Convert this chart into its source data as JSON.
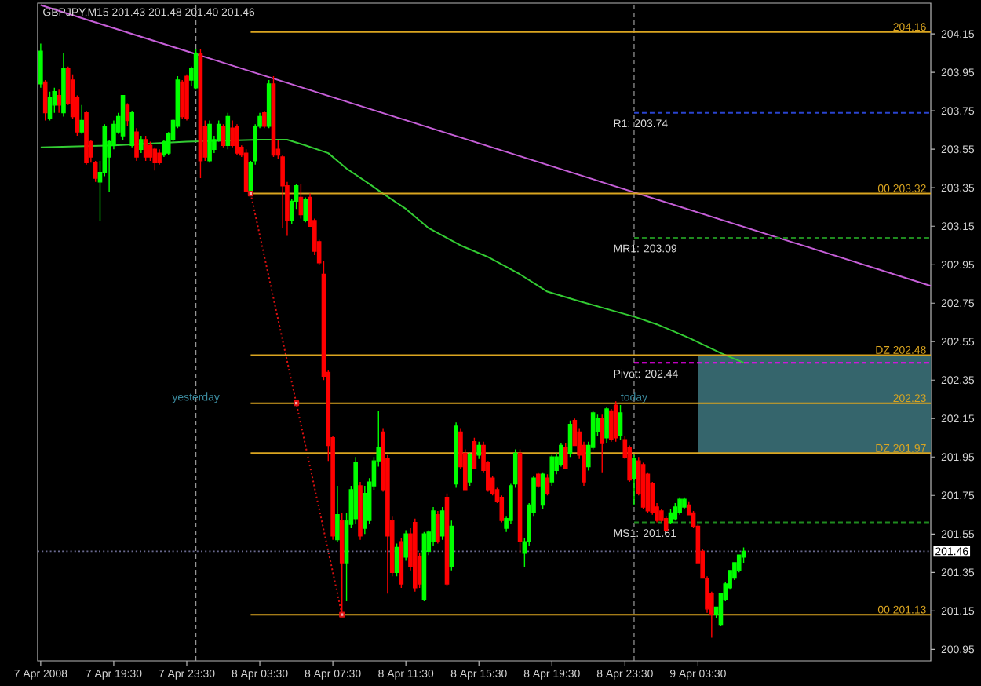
{
  "chart_data": {
    "type": "candlestick",
    "title": "GBPJPY,M15 201.43 201.48 201.40 201.46",
    "xlim": [
      "2008-04-07T15:20",
      "2008-04-09T16:15"
    ],
    "ylim": [
      200.89,
      204.31
    ],
    "xticks": [
      {
        "value": "2008-04-07T15:30",
        "label": "7 Apr 2008"
      },
      {
        "value": "2008-04-07T19:30",
        "label": "7 Apr 19:30"
      },
      {
        "value": "2008-04-07T23:30",
        "label": "7 Apr 23:30"
      },
      {
        "value": "2008-04-08T03:30",
        "label": "8 Apr 03:30"
      },
      {
        "value": "2008-04-08T07:30",
        "label": "8 Apr 07:30"
      },
      {
        "value": "2008-04-08T11:30",
        "label": "8 Apr 11:30"
      },
      {
        "value": "2008-04-08T15:30",
        "label": "8 Apr 15:30"
      },
      {
        "value": "2008-04-08T19:30",
        "label": "8 Apr 19:30"
      },
      {
        "value": "2008-04-08T23:30",
        "label": "8 Apr 23:30"
      },
      {
        "value": "2008-04-09T03:30",
        "label": "9 Apr 03:30"
      }
    ],
    "yticks": [
      200.95,
      201.15,
      201.35,
      201.55,
      201.75,
      201.95,
      202.15,
      202.35,
      202.55,
      202.75,
      202.95,
      203.15,
      203.35,
      203.55,
      203.75,
      203.95,
      204.15
    ],
    "x": [
      "2008-04-07T15:30",
      "2008-04-07T15:45",
      "2008-04-07T16:00",
      "2008-04-07T16:15",
      "2008-04-07T16:30",
      "2008-04-07T16:45",
      "2008-04-07T17:00",
      "2008-04-07T17:15",
      "2008-04-07T17:30",
      "2008-04-07T17:45",
      "2008-04-07T18:00",
      "2008-04-07T18:15",
      "2008-04-07T18:30",
      "2008-04-07T18:45",
      "2008-04-07T19:00",
      "2008-04-07T19:15",
      "2008-04-07T19:30",
      "2008-04-07T19:45",
      "2008-04-07T20:00",
      "2008-04-07T20:15",
      "2008-04-07T20:30",
      "2008-04-07T20:45",
      "2008-04-07T21:00",
      "2008-04-07T21:15",
      "2008-04-07T21:30",
      "2008-04-07T21:45",
      "2008-04-07T22:00",
      "2008-04-07T22:15",
      "2008-04-07T22:30",
      "2008-04-07T22:45",
      "2008-04-07T23:00",
      "2008-04-07T23:15",
      "2008-04-07T23:30",
      "2008-04-07T23:45",
      "2008-04-08T00:00",
      "2008-04-08T00:15",
      "2008-04-08T00:30",
      "2008-04-08T00:45",
      "2008-04-08T01:00",
      "2008-04-08T01:15",
      "2008-04-08T01:30",
      "2008-04-08T01:45",
      "2008-04-08T02:00",
      "2008-04-08T02:15",
      "2008-04-08T02:30",
      "2008-04-08T02:45",
      "2008-04-08T03:00",
      "2008-04-08T03:15",
      "2008-04-08T03:30",
      "2008-04-08T03:45",
      "2008-04-08T04:00",
      "2008-04-08T04:15",
      "2008-04-08T04:30",
      "2008-04-08T04:45",
      "2008-04-08T05:00",
      "2008-04-08T05:15",
      "2008-04-08T05:30",
      "2008-04-08T05:45",
      "2008-04-08T06:00",
      "2008-04-08T06:15",
      "2008-04-08T06:30",
      "2008-04-08T06:45",
      "2008-04-08T07:00",
      "2008-04-08T07:15",
      "2008-04-08T07:30",
      "2008-04-08T07:45",
      "2008-04-08T08:00",
      "2008-04-08T08:15",
      "2008-04-08T08:30",
      "2008-04-08T08:45",
      "2008-04-08T09:00",
      "2008-04-08T09:15",
      "2008-04-08T09:30",
      "2008-04-08T09:45",
      "2008-04-08T10:00",
      "2008-04-08T10:15",
      "2008-04-08T10:30",
      "2008-04-08T10:45",
      "2008-04-08T11:00",
      "2008-04-08T11:15",
      "2008-04-08T11:30",
      "2008-04-08T11:45",
      "2008-04-08T12:00",
      "2008-04-08T12:15",
      "2008-04-08T12:30",
      "2008-04-08T12:45",
      "2008-04-08T13:00",
      "2008-04-08T13:15",
      "2008-04-08T13:30",
      "2008-04-08T13:45",
      "2008-04-08T14:00",
      "2008-04-08T14:15",
      "2008-04-08T14:30",
      "2008-04-08T14:45",
      "2008-04-08T15:00",
      "2008-04-08T15:15",
      "2008-04-08T15:30",
      "2008-04-08T15:45",
      "2008-04-08T16:00",
      "2008-04-08T16:15",
      "2008-04-08T16:30",
      "2008-04-08T16:45",
      "2008-04-08T17:00",
      "2008-04-08T17:15",
      "2008-04-08T17:30",
      "2008-04-08T17:45",
      "2008-04-08T18:00",
      "2008-04-08T18:15",
      "2008-04-08T18:30",
      "2008-04-08T18:45",
      "2008-04-08T19:00",
      "2008-04-08T19:15",
      "2008-04-08T19:30",
      "2008-04-08T19:45",
      "2008-04-08T20:00",
      "2008-04-08T20:15",
      "2008-04-08T20:30",
      "2008-04-08T20:45",
      "2008-04-08T21:00",
      "2008-04-08T21:15",
      "2008-04-08T21:30",
      "2008-04-08T21:45",
      "2008-04-08T22:00",
      "2008-04-08T22:15",
      "2008-04-08T22:30",
      "2008-04-08T22:45",
      "2008-04-08T23:00",
      "2008-04-08T23:15",
      "2008-04-08T23:30",
      "2008-04-08T23:45",
      "2008-04-09T00:00",
      "2008-04-09T00:15",
      "2008-04-09T00:30",
      "2008-04-09T00:45",
      "2008-04-09T01:00",
      "2008-04-09T01:15",
      "2008-04-09T01:30",
      "2008-04-09T01:45",
      "2008-04-09T02:00",
      "2008-04-09T02:15",
      "2008-04-09T02:30",
      "2008-04-09T02:45",
      "2008-04-09T03:00",
      "2008-04-09T03:15",
      "2008-04-09T03:30",
      "2008-04-09T03:45",
      "2008-04-09T04:00",
      "2008-04-09T04:15",
      "2008-04-09T04:30",
      "2008-04-09T04:45",
      "2008-04-09T05:00",
      "2008-04-09T05:15",
      "2008-04-09T05:30",
      "2008-04-09T05:45",
      "2008-04-09T06:00"
    ],
    "ohlc": [
      [
        203.89,
        204.1,
        203.87,
        204.06
      ],
      [
        203.9,
        203.91,
        203.7,
        203.74
      ],
      [
        203.71,
        203.85,
        203.7,
        203.82
      ],
      [
        203.78,
        203.87,
        203.74,
        203.85
      ],
      [
        203.83,
        203.86,
        203.74,
        203.78
      ],
      [
        203.74,
        204.05,
        203.72,
        203.97
      ],
      [
        203.97,
        203.98,
        203.78,
        203.79
      ],
      [
        203.91,
        203.94,
        203.71,
        203.72
      ],
      [
        203.82,
        203.83,
        203.62,
        203.64
      ],
      [
        203.64,
        203.78,
        203.63,
        203.7
      ],
      [
        203.74,
        203.75,
        203.47,
        203.48
      ],
      [
        203.59,
        203.6,
        203.48,
        203.51
      ],
      [
        203.48,
        203.49,
        203.38,
        203.4
      ],
      [
        203.38,
        203.49,
        203.18,
        203.43
      ],
      [
        203.43,
        203.68,
        203.41,
        203.67
      ],
      [
        203.51,
        203.6,
        203.33,
        203.59
      ],
      [
        203.57,
        203.7,
        203.55,
        203.68
      ],
      [
        203.64,
        203.74,
        203.63,
        203.72
      ],
      [
        203.62,
        203.83,
        203.6,
        203.83
      ],
      [
        203.78,
        203.79,
        203.67,
        203.7
      ],
      [
        203.57,
        203.75,
        203.56,
        203.74
      ],
      [
        203.64,
        203.66,
        203.49,
        203.51
      ],
      [
        203.55,
        203.62,
        203.53,
        203.6
      ],
      [
        203.6,
        203.62,
        203.49,
        203.51
      ],
      [
        203.57,
        203.59,
        203.49,
        203.51
      ],
      [
        203.55,
        203.56,
        203.44,
        203.48
      ],
      [
        203.53,
        203.55,
        203.47,
        203.48
      ],
      [
        203.52,
        203.6,
        203.51,
        203.59
      ],
      [
        203.53,
        203.64,
        203.52,
        203.63
      ],
      [
        203.6,
        203.71,
        203.59,
        203.7
      ],
      [
        203.67,
        203.93,
        203.66,
        203.91
      ],
      [
        203.9,
        203.91,
        203.71,
        203.72
      ],
      [
        203.93,
        203.94,
        203.7,
        203.71
      ],
      [
        203.91,
        203.98,
        203.88,
        203.97
      ],
      [
        203.87,
        204.07,
        203.86,
        204.05
      ],
      [
        204.05,
        204.07,
        203.4,
        203.49
      ],
      [
        203.67,
        203.7,
        203.49,
        203.51
      ],
      [
        203.49,
        203.7,
        203.48,
        203.68
      ],
      [
        203.55,
        203.62,
        203.53,
        203.6
      ],
      [
        203.6,
        203.7,
        203.59,
        203.68
      ],
      [
        203.67,
        203.68,
        203.56,
        203.57
      ],
      [
        203.57,
        203.74,
        203.55,
        203.72
      ],
      [
        203.66,
        203.7,
        203.56,
        203.57
      ],
      [
        203.67,
        203.68,
        203.52,
        203.53
      ],
      [
        203.56,
        203.57,
        203.51,
        203.52
      ],
      [
        203.53,
        203.55,
        203.33,
        203.33
      ],
      [
        203.32,
        203.49,
        203.32,
        203.48
      ],
      [
        203.49,
        203.68,
        203.47,
        203.67
      ],
      [
        203.67,
        203.74,
        203.66,
        203.72
      ],
      [
        203.74,
        203.75,
        203.66,
        203.67
      ],
      [
        203.67,
        203.91,
        203.66,
        203.89
      ],
      [
        203.89,
        203.93,
        203.51,
        203.52
      ],
      [
        203.55,
        203.6,
        203.5,
        203.52
      ],
      [
        203.51,
        203.52,
        203.14,
        203.36
      ],
      [
        203.36,
        203.38,
        203.1,
        203.18
      ],
      [
        203.18,
        203.29,
        203.16,
        203.28
      ],
      [
        203.28,
        203.37,
        203.24,
        203.36
      ],
      [
        203.3,
        203.37,
        203.19,
        203.21
      ],
      [
        203.18,
        203.3,
        203.17,
        203.29
      ],
      [
        203.3,
        203.32,
        203.15,
        203.15
      ],
      [
        203.18,
        203.19,
        203.0,
        203.02
      ],
      [
        203.07,
        203.08,
        202.95,
        202.96
      ],
      [
        202.9,
        202.97,
        202.35,
        202.37
      ],
      [
        202.39,
        202.4,
        201.93,
        202.01
      ],
      [
        202.05,
        202.06,
        201.52,
        201.54
      ],
      [
        201.52,
        201.8,
        201.51,
        201.65
      ],
      [
        201.62,
        201.66,
        201.13,
        201.4
      ],
      [
        201.4,
        201.66,
        201.2,
        201.62
      ],
      [
        201.6,
        201.8,
        201.58,
        201.78
      ],
      [
        201.63,
        201.95,
        201.6,
        201.92
      ],
      [
        201.8,
        201.82,
        201.52,
        201.54
      ],
      [
        201.58,
        201.8,
        201.55,
        201.76
      ],
      [
        201.62,
        201.84,
        201.6,
        201.82
      ],
      [
        201.8,
        201.95,
        201.78,
        201.93
      ],
      [
        201.93,
        202.19,
        201.9,
        202.0
      ],
      [
        202.08,
        202.1,
        201.77,
        201.78
      ],
      [
        201.94,
        201.96,
        201.24,
        201.54
      ],
      [
        201.62,
        201.64,
        201.33,
        201.35
      ],
      [
        201.35,
        201.5,
        201.33,
        201.48
      ],
      [
        201.51,
        201.53,
        201.27,
        201.29
      ],
      [
        201.43,
        201.57,
        201.41,
        201.55
      ],
      [
        201.55,
        201.58,
        201.36,
        201.38
      ],
      [
        201.61,
        201.63,
        201.25,
        201.27
      ],
      [
        201.43,
        201.45,
        201.27,
        201.29
      ],
      [
        201.21,
        201.56,
        201.2,
        201.55
      ],
      [
        201.46,
        201.57,
        201.44,
        201.56
      ],
      [
        201.51,
        201.69,
        201.49,
        201.67
      ],
      [
        201.65,
        201.67,
        201.5,
        201.51
      ],
      [
        201.54,
        201.69,
        201.52,
        201.67
      ],
      [
        201.74,
        201.76,
        201.28,
        201.29
      ],
      [
        201.38,
        201.62,
        201.36,
        201.59
      ],
      [
        201.81,
        202.13,
        201.79,
        202.11
      ],
      [
        202.08,
        202.1,
        201.89,
        201.9
      ],
      [
        201.97,
        201.99,
        201.78,
        201.78
      ],
      [
        201.82,
        201.97,
        201.8,
        201.96
      ],
      [
        202.03,
        202.05,
        201.89,
        201.89
      ],
      [
        201.96,
        202.03,
        201.94,
        202.01
      ],
      [
        202.01,
        202.03,
        201.87,
        201.88
      ],
      [
        201.92,
        201.93,
        201.77,
        201.78
      ],
      [
        201.84,
        201.85,
        201.75,
        201.76
      ],
      [
        201.78,
        201.79,
        201.71,
        201.72
      ],
      [
        201.74,
        201.75,
        201.61,
        201.62
      ],
      [
        201.58,
        201.64,
        201.56,
        201.63
      ],
      [
        201.62,
        201.81,
        201.6,
        201.8
      ],
      [
        201.81,
        201.99,
        201.79,
        201.97
      ],
      [
        201.97,
        201.99,
        201.45,
        201.51
      ],
      [
        201.45,
        201.53,
        201.38,
        201.51
      ],
      [
        201.51,
        201.71,
        201.49,
        201.7
      ],
      [
        201.66,
        201.85,
        201.64,
        201.84
      ],
      [
        201.86,
        201.87,
        201.79,
        201.8
      ],
      [
        201.7,
        201.87,
        201.68,
        201.86
      ],
      [
        201.84,
        201.86,
        201.75,
        201.76
      ],
      [
        201.82,
        201.96,
        201.8,
        201.95
      ],
      [
        201.88,
        201.97,
        201.86,
        201.95
      ],
      [
        201.91,
        202.02,
        201.9,
        202.01
      ],
      [
        202.0,
        202.02,
        201.89,
        201.89
      ],
      [
        201.97,
        202.14,
        201.95,
        202.12
      ],
      [
        202.14,
        202.15,
        202.01,
        202.01
      ],
      [
        202.08,
        202.1,
        201.94,
        201.96
      ],
      [
        202.01,
        202.03,
        201.8,
        201.82
      ],
      [
        201.9,
        202.03,
        201.88,
        202.01
      ],
      [
        202.0,
        202.19,
        201.99,
        202.18
      ],
      [
        202.08,
        202.17,
        202.06,
        202.15
      ],
      [
        202.15,
        202.17,
        201.87,
        202.02
      ],
      [
        202.05,
        202.21,
        202.02,
        202.2
      ],
      [
        202.19,
        202.2,
        202.03,
        202.04
      ],
      [
        202.22,
        202.24,
        202.03,
        202.05
      ],
      [
        202.06,
        202.22,
        202.04,
        202.18
      ],
      [
        202.04,
        202.06,
        201.94,
        201.95
      ],
      [
        202.0,
        202.01,
        201.82,
        201.83
      ],
      [
        201.84,
        201.96,
        201.7,
        201.94
      ],
      [
        201.93,
        201.95,
        201.75,
        201.76
      ],
      [
        201.91,
        201.92,
        201.68,
        201.69
      ],
      [
        201.86,
        201.87,
        201.66,
        201.67
      ],
      [
        201.81,
        201.82,
        201.65,
        201.66
      ],
      [
        201.69,
        201.71,
        201.61,
        201.62
      ],
      [
        201.67,
        201.68,
        201.61,
        201.62
      ],
      [
        201.63,
        201.64,
        201.56,
        201.57
      ],
      [
        201.61,
        201.68,
        201.6,
        201.66
      ],
      [
        201.63,
        201.71,
        201.62,
        201.69
      ],
      [
        201.66,
        201.74,
        201.65,
        201.73
      ],
      [
        201.69,
        201.74,
        201.68,
        201.73
      ],
      [
        201.7,
        201.72,
        201.65,
        201.65
      ],
      [
        201.66,
        201.67,
        201.58,
        201.59
      ],
      [
        201.59,
        201.6,
        201.4,
        201.4
      ],
      [
        201.46,
        201.47,
        201.32,
        201.32
      ],
      [
        201.32,
        201.33,
        201.14,
        201.16
      ],
      [
        201.24,
        201.25,
        201.01,
        201.13
      ],
      [
        201.13,
        201.17,
        201.11,
        201.17
      ],
      [
        201.08,
        201.24,
        201.07,
        201.24
      ],
      [
        201.21,
        201.3,
        201.2,
        201.29
      ],
      [
        201.27,
        201.36,
        201.26,
        201.36
      ],
      [
        201.32,
        201.4,
        201.31,
        201.4
      ],
      [
        201.36,
        201.44,
        201.35,
        201.44
      ],
      [
        201.43,
        201.48,
        201.4,
        201.46
      ]
    ],
    "colors": [
      "#00ff00",
      "#ff0000",
      "#00ff00",
      "#00ff00",
      "#ff0000",
      "#00ff00",
      "#ff0000",
      "#ff0000",
      "#ff0000",
      "#00ff00",
      "#ff0000",
      "#ff0000",
      "#ff0000",
      "#00ff00",
      "#00ff00",
      "#00ff00",
      "#00ff00",
      "#00ff00",
      "#00ff00",
      "#ff0000",
      "#00ff00",
      "#ff0000",
      "#00ff00",
      "#ff0000",
      "#ff0000",
      "#ff0000",
      "#ff0000",
      "#00ff00",
      "#00ff00",
      "#00ff00",
      "#00ff00",
      "#ff0000",
      "#ff0000",
      "#00ff00",
      "#00ff00",
      "#ff0000",
      "#ff0000",
      "#00ff00",
      "#00ff00",
      "#00ff00",
      "#ff0000",
      "#00ff00",
      "#ff0000",
      "#ff0000",
      "#ff0000",
      "#ff0000",
      "#00ff00",
      "#00ff00",
      "#00ff00",
      "#ff0000",
      "#00ff00",
      "#ff0000",
      "#ff0000",
      "#ff0000",
      "#ff0000",
      "#00ff00",
      "#00ff00",
      "#ff0000",
      "#00ff00",
      "#ff0000",
      "#ff0000",
      "#ff0000",
      "#ff0000",
      "#ff0000",
      "#ff0000",
      "#00ff00",
      "#ff0000",
      "#00ff00",
      "#00ff00",
      "#00ff00",
      "#ff0000",
      "#00ff00",
      "#00ff00",
      "#00ff00",
      "#00ff00",
      "#ff0000",
      "#ff0000",
      "#ff0000",
      "#00ff00",
      "#ff0000",
      "#00ff00",
      "#ff0000",
      "#ff0000",
      "#ff0000",
      "#00ff00",
      "#00ff00",
      "#00ff00",
      "#ff0000",
      "#00ff00",
      "#ff0000",
      "#00ff00",
      "#00ff00",
      "#ff0000",
      "#ff0000",
      "#00ff00",
      "#ff0000",
      "#00ff00",
      "#ff0000",
      "#ff0000",
      "#ff0000",
      "#ff0000",
      "#ff0000",
      "#00ff00",
      "#00ff00",
      "#00ff00",
      "#ff0000",
      "#00ff00",
      "#00ff00",
      "#00ff00",
      "#ff0000",
      "#00ff00",
      "#ff0000",
      "#00ff00",
      "#00ff00",
      "#00ff00",
      "#ff0000",
      "#00ff00",
      "#ff0000",
      "#ff0000",
      "#ff0000",
      "#00ff00",
      "#00ff00",
      "#00ff00",
      "#ff0000",
      "#00ff00",
      "#ff0000",
      "#ff0000",
      "#00ff00",
      "#ff0000",
      "#ff0000",
      "#00ff00",
      "#ff0000",
      "#ff0000",
      "#ff0000",
      "#ff0000",
      "#ff0000",
      "#ff0000",
      "#ff0000",
      "#00ff00",
      "#00ff00",
      "#00ff00",
      "#00ff00",
      "#ff0000",
      "#ff0000",
      "#ff0000",
      "#ff0000",
      "#ff0000",
      "#ff0000",
      "#00ff00",
      "#00ff00",
      "#00ff00",
      "#00ff00",
      "#00ff00",
      "#00ff00",
      "#00ff00"
    ],
    "series": [
      {
        "type": "area",
        "color": "#35656c",
        "x": [
          "2008-04-09T03:30",
          "2008-04-09T16:15"
        ],
        "values": [
          null,
          null
        ],
        "lower": [
          201.97,
          201.97
        ],
        "upper": [
          202.48,
          202.48
        ]
      },
      {
        "type": "line",
        "color": "#33cc33",
        "x": [
          "2008-04-07T15:30",
          "2008-04-07T19:30",
          "2008-04-07T23:30",
          "2008-04-08T03:30",
          "2008-04-08T05:00",
          "2008-04-08T06:00",
          "2008-04-08T07:15",
          "2008-04-08T08:15",
          "2008-04-08T09:30",
          "2008-04-08T10:15",
          "2008-04-08T11:30",
          "2008-04-08T12:45",
          "2008-04-08T14:30",
          "2008-04-08T16:00",
          "2008-04-08T17:45",
          "2008-04-08T19:15",
          "2008-04-08T21:00",
          "2008-04-08T22:30",
          "2008-04-09T00:00",
          "2008-04-09T01:15",
          "2008-04-09T03:00",
          "2008-04-09T04:45",
          "2008-04-09T06:00"
        ],
        "values": [
          203.56,
          203.57,
          203.59,
          203.6,
          203.6,
          203.57,
          203.53,
          203.45,
          203.37,
          203.32,
          203.24,
          203.14,
          203.05,
          202.99,
          202.9,
          202.81,
          202.76,
          202.72,
          202.68,
          202.64,
          202.57,
          202.49,
          202.44
        ]
      },
      {
        "type": "line",
        "color": "#c65fd8",
        "x": [
          "2008-04-07T15:30",
          "2008-04-09T16:15"
        ],
        "values": [
          204.3,
          202.84
        ]
      },
      {
        "type": "line",
        "color": "#dd1111",
        "line_style": "dotted",
        "marker": "square",
        "x": [
          "2008-04-08T03:00",
          "2008-04-08T05:30",
          "2008-04-08T08:00"
        ],
        "values": [
          203.32,
          202.23,
          201.13
        ]
      },
      {
        "type": "line",
        "name": "204.16",
        "color": "#daa520",
        "x": [
          "2008-04-08T03:00",
          "2008-04-09T16:15"
        ],
        "values": [
          204.16,
          204.16
        ]
      },
      {
        "type": "line",
        "name": "00 203.32",
        "color": "#daa520",
        "x": [
          "2008-04-08T03:00",
          "2008-04-09T16:15"
        ],
        "values": [
          203.32,
          203.32
        ]
      },
      {
        "type": "line",
        "name": "DZ 202.48",
        "color": "#daa520",
        "x": [
          "2008-04-08T03:00",
          "2008-04-09T16:15"
        ],
        "values": [
          202.48,
          202.48
        ]
      },
      {
        "type": "line",
        "name": "202.23",
        "color": "#daa520",
        "x": [
          "2008-04-08T03:00",
          "2008-04-09T16:15"
        ],
        "values": [
          202.23,
          202.23
        ]
      },
      {
        "type": "line",
        "name": "DZ 201.97",
        "color": "#daa520",
        "x": [
          "2008-04-08T03:00",
          "2008-04-09T16:15"
        ],
        "values": [
          201.97,
          201.97
        ]
      },
      {
        "type": "line",
        "name": "00 201.13",
        "color": "#daa520",
        "x": [
          "2008-04-08T03:00",
          "2008-04-09T16:15"
        ],
        "values": [
          201.13,
          201.13
        ]
      },
      {
        "type": "line",
        "name": "R1: 203.74",
        "color": "#2a44d0",
        "line_style": "dashed",
        "x": [
          "2008-04-09T00:00",
          "2008-04-09T16:15"
        ],
        "values": [
          203.74,
          203.74
        ]
      },
      {
        "type": "line",
        "name": "MR1: 203.09",
        "color": "#1f8a1f",
        "line_style": "dashed",
        "x": [
          "2008-04-09T00:00",
          "2008-04-09T16:15"
        ],
        "values": [
          203.09,
          203.09
        ]
      },
      {
        "type": "line",
        "name": "Pivot: 202.44",
        "color": "#ff00ff",
        "line_style": "dashed",
        "x": [
          "2008-04-09T00:00",
          "2008-04-09T16:15"
        ],
        "values": [
          202.44,
          202.44
        ]
      },
      {
        "type": "line",
        "name": "MS1: 201.61",
        "color": "#1f8a1f",
        "line_style": "dashed",
        "x": [
          "2008-04-09T00:00",
          "2008-04-09T16:15"
        ],
        "values": [
          201.61,
          201.61
        ]
      }
    ],
    "ref_lines": [
      {
        "axis": "y",
        "value": 201.46,
        "label": "201.46",
        "color": "#6a6a90",
        "line_style": "dotted"
      },
      {
        "axis": "x",
        "value": "2008-04-08T00:00",
        "label": "yesterday",
        "color": "#9a9a9a",
        "line_style": "dashed"
      },
      {
        "axis": "x",
        "value": "2008-04-09T00:00",
        "label": "today",
        "color": "#9a9a9a",
        "line_style": "dashed"
      }
    ]
  }
}
